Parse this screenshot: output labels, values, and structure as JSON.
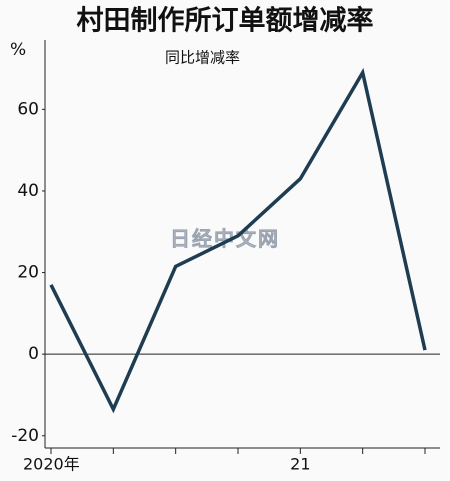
{
  "chart_data": {
    "type": "line",
    "title": "村田制作所订单额增减率",
    "subtitle": "同比增减率",
    "y_unit": "%",
    "watermark": "日经中文网",
    "categories": [
      "2020年",
      null,
      null,
      null,
      "21",
      null,
      null
    ],
    "series": [
      {
        "color": "#1f3d52",
        "values": [
          17,
          -13.5,
          21.5,
          29,
          43,
          69,
          1
        ]
      }
    ],
    "ylim": [
      -23,
      77
    ],
    "yticks": [
      -20,
      0,
      20,
      40,
      60
    ],
    "zero_line": true
  }
}
